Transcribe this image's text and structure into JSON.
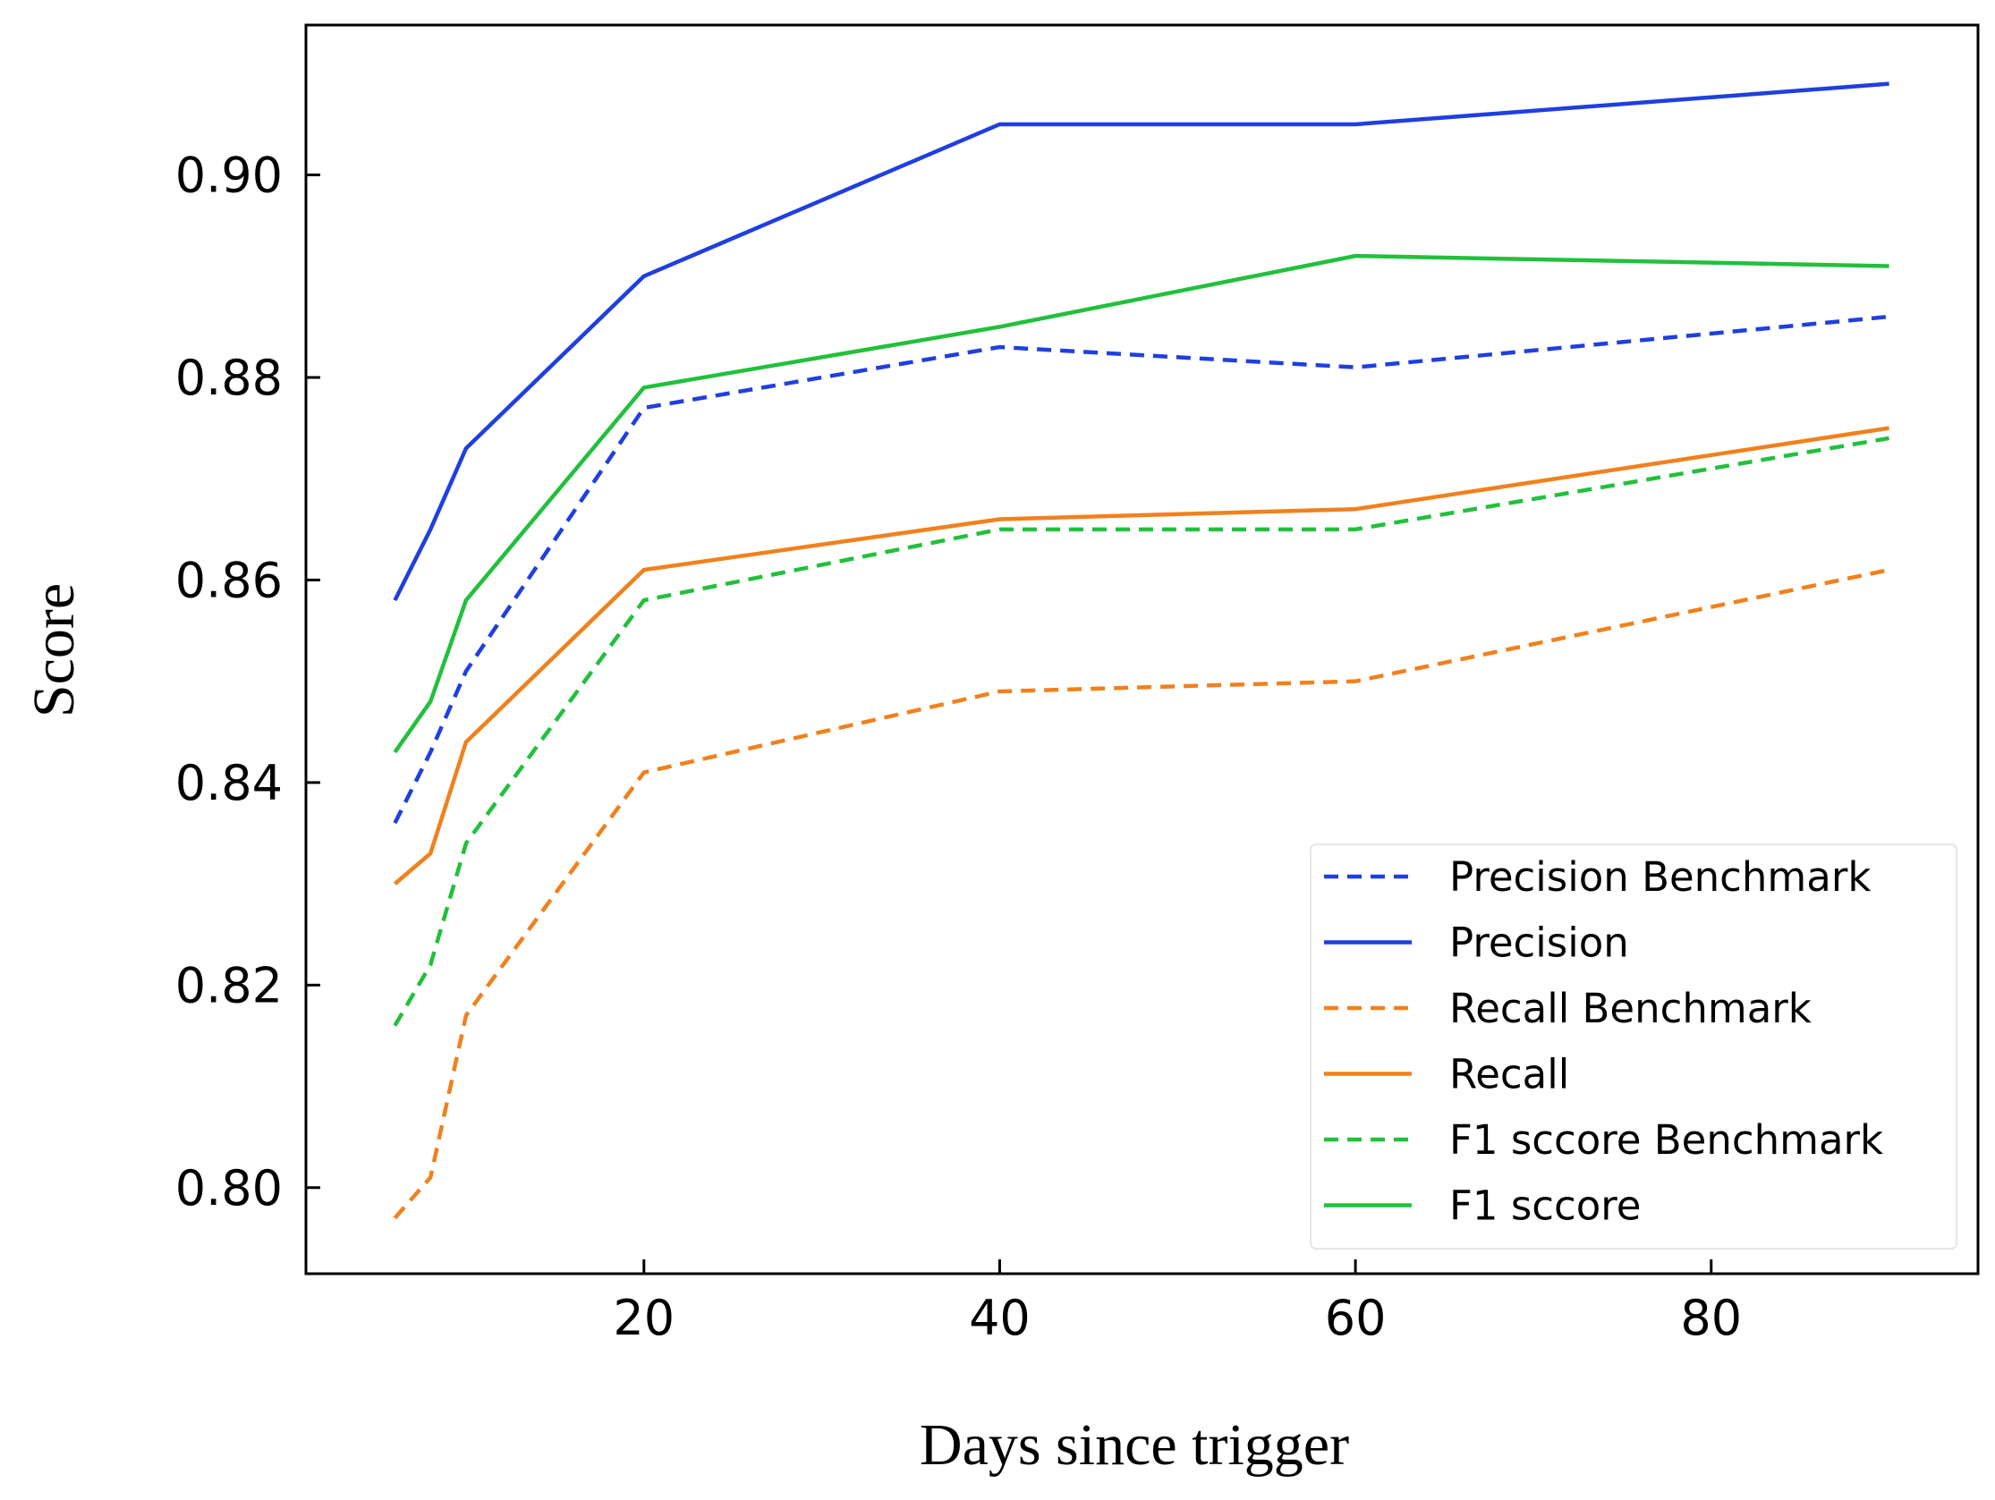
{
  "chart_data": {
    "type": "line",
    "xlabel": "Days since trigger",
    "ylabel": "Score",
    "xlim": [
      1,
      95
    ],
    "ylim": [
      0.7915,
      0.9148
    ],
    "x_ticks": [
      20,
      40,
      60,
      80
    ],
    "x_tick_labels": [
      "20",
      "40",
      "60",
      "80"
    ],
    "y_ticks": [
      0.8,
      0.82,
      0.84,
      0.86,
      0.88,
      0.9
    ],
    "y_tick_labels": [
      "0.80",
      "0.82",
      "0.84",
      "0.86",
      "0.88",
      "0.90"
    ],
    "grid": false,
    "legend_position": "bottom-right",
    "x": [
      6,
      8,
      10,
      20,
      40,
      60,
      90
    ],
    "series": [
      {
        "name": "Precision Benchmark",
        "color": "#1f3fe0",
        "dash": true,
        "values": [
          0.836,
          0.843,
          0.851,
          0.877,
          0.883,
          0.881,
          0.886
        ]
      },
      {
        "name": "Precision",
        "color": "#1f3fe0",
        "dash": false,
        "values": [
          0.858,
          0.865,
          0.873,
          0.89,
          0.905,
          0.905,
          0.909
        ]
      },
      {
        "name": "Recall Benchmark",
        "color": "#f0811d",
        "dash": true,
        "values": [
          0.797,
          0.801,
          0.817,
          0.841,
          0.849,
          0.85,
          0.861
        ]
      },
      {
        "name": "Recall",
        "color": "#f0811d",
        "dash": false,
        "values": [
          0.83,
          0.833,
          0.844,
          0.861,
          0.866,
          0.867,
          0.875
        ]
      },
      {
        "name": "F1 sccore Benchmark",
        "color": "#22c03c",
        "dash": true,
        "values": [
          0.816,
          0.822,
          0.834,
          0.858,
          0.865,
          0.865,
          0.874
        ]
      },
      {
        "name": "F1 sccore",
        "color": "#22c03c",
        "dash": false,
        "values": [
          0.843,
          0.848,
          0.858,
          0.879,
          0.885,
          0.892,
          0.891
        ]
      }
    ]
  }
}
